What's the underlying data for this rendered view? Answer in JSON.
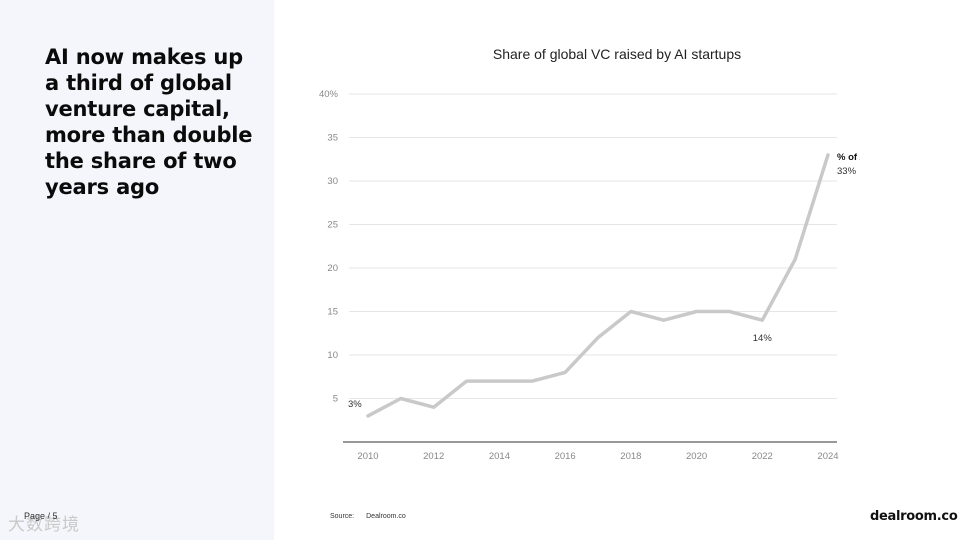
{
  "headline": "AI now makes up a third of global venture capital, more than double the share of two years ago",
  "page_label": "Page / 5",
  "watermark": "大数跨境",
  "source_label": "Source:",
  "source_value": "Dealroom.co",
  "brand": "dealroom.co",
  "colors": {
    "line": "#c9c9c9",
    "grid": "#e6e6e6",
    "axis": "#333333",
    "panel": "#f4f6fb"
  },
  "chart_data": {
    "type": "line",
    "title": "Share of global VC raised by AI startups",
    "xlabel": "",
    "ylabel": "",
    "ylim": [
      0,
      40
    ],
    "y_ticks": [
      5,
      10,
      15,
      20,
      25,
      30,
      35,
      40
    ],
    "y_tick_labels": [
      "5",
      "10",
      "15",
      "20",
      "25",
      "30",
      "35",
      "40%"
    ],
    "x_ticks": [
      2010,
      2012,
      2014,
      2016,
      2018,
      2020,
      2022,
      2024
    ],
    "grid": true,
    "series": [
      {
        "name": "% of AI globally",
        "x": [
          2010,
          2011,
          2012,
          2013,
          2014,
          2015,
          2016,
          2017,
          2018,
          2019,
          2020,
          2021,
          2022,
          2023,
          2024
        ],
        "values": [
          3,
          5,
          4,
          7,
          7,
          7,
          8,
          12,
          15,
          14,
          15,
          15,
          14,
          21,
          33
        ]
      }
    ],
    "annotations": [
      {
        "x": 2010,
        "y": 3,
        "text": "3%"
      },
      {
        "x": 2022,
        "y": 14,
        "text": "14%"
      },
      {
        "x": 2024,
        "y": 33,
        "text": "33%"
      }
    ],
    "series_label": "% of AI globally"
  }
}
